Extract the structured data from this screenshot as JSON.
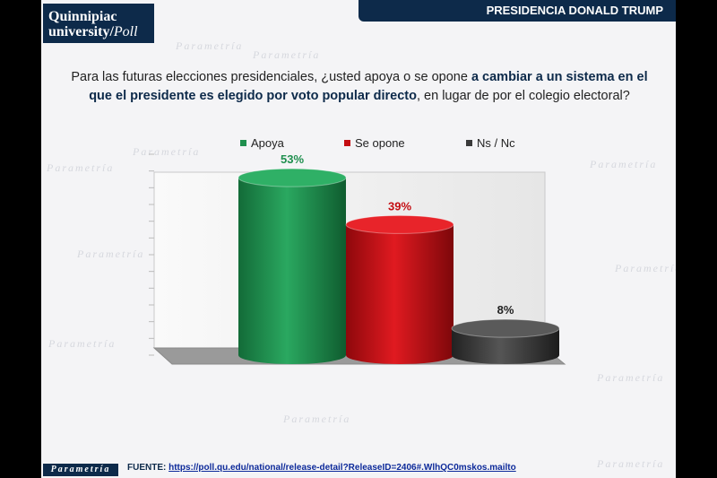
{
  "header": {
    "section_title": "PRESIDENCIA DONALD TRUMP",
    "logo_line1": "Quinnipiac",
    "logo_line2": "university",
    "logo_line2_suffix": "Poll"
  },
  "question": {
    "part1": "Para las futuras elecciones presidenciales, ¿usted apoya o se opone ",
    "bold": "a cambiar a un sistema en el que el presidente es elegido por voto popular directo",
    "part2": ", en lugar de por el colegio electoral?"
  },
  "watermark": "Parametría",
  "chart_data": {
    "type": "bar",
    "categories": [
      "Apoya",
      "Se opone",
      "Ns / Nc"
    ],
    "values": [
      53,
      39,
      8
    ],
    "data_labels": [
      "53%",
      "39%",
      "8%"
    ],
    "colors": [
      "#1f8f4e",
      "#c40d12",
      "#3a3a3a"
    ],
    "label_colors": [
      "#1f8f4e",
      "#c40d12",
      "#222222"
    ],
    "ylim": [
      0,
      60
    ],
    "legend_position": "top",
    "grid": false
  },
  "footer": {
    "brand": "Parametría",
    "source_label": "FUENTE: ",
    "source_url": "https://poll.qu.edu/national/release-detail?ReleaseID=2406#.WlhQC0mskos.mailto"
  }
}
